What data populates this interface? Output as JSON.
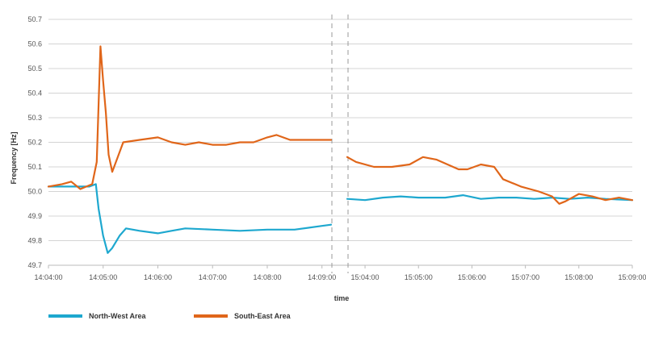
{
  "chart_data": {
    "type": "line",
    "title": "",
    "xlabel": "time",
    "ylabel": "Frequency [Hz]",
    "ylim": [
      49.7,
      50.7
    ],
    "yticks": [
      "49.7",
      "49.8",
      "49.9",
      "50.0",
      "50.1",
      "50.2",
      "50.3",
      "50.4",
      "50.5",
      "50.6",
      "50.7"
    ],
    "grid": true,
    "legend_position": "bottom-left",
    "panels": [
      {
        "xlim": [
          "14:04:00",
          "14:09:10"
        ],
        "xticks": [
          "14:04:00",
          "14:05:00",
          "14:06:00",
          "14:07:00",
          "14:08:00",
          "14:09:00"
        ],
        "series": [
          {
            "name": "North-West Area",
            "color": "#1ea8cf",
            "points": [
              [
                "14:04:00",
                50.02
              ],
              [
                "14:04:15",
                50.02
              ],
              [
                "14:04:30",
                50.02
              ],
              [
                "14:04:45",
                50.02
              ],
              [
                "14:04:52",
                50.03
              ],
              [
                "14:04:55",
                49.93
              ],
              [
                "14:05:00",
                49.82
              ],
              [
                "14:05:05",
                49.75
              ],
              [
                "14:05:10",
                49.77
              ],
              [
                "14:05:18",
                49.82
              ],
              [
                "14:05:25",
                49.85
              ],
              [
                "14:05:40",
                49.84
              ],
              [
                "14:06:00",
                49.83
              ],
              [
                "14:06:15",
                49.84
              ],
              [
                "14:06:30",
                49.85
              ],
              [
                "14:07:00",
                49.845
              ],
              [
                "14:07:30",
                49.84
              ],
              [
                "14:08:00",
                49.845
              ],
              [
                "14:08:30",
                49.845
              ],
              [
                "14:09:00",
                49.86
              ],
              [
                "14:09:10",
                49.865
              ]
            ]
          },
          {
            "name": "South-East Area",
            "color": "#e0661a",
            "points": [
              [
                "14:04:00",
                50.02
              ],
              [
                "14:04:15",
                50.03
              ],
              [
                "14:04:25",
                50.04
              ],
              [
                "14:04:35",
                50.01
              ],
              [
                "14:04:48",
                50.03
              ],
              [
                "14:04:53",
                50.12
              ],
              [
                "14:04:57",
                50.59
              ],
              [
                "14:05:00",
                50.45
              ],
              [
                "14:05:03",
                50.32
              ],
              [
                "14:05:06",
                50.15
              ],
              [
                "14:05:10",
                50.08
              ],
              [
                "14:05:15",
                50.13
              ],
              [
                "14:05:22",
                50.2
              ],
              [
                "14:05:40",
                50.21
              ],
              [
                "14:06:00",
                50.22
              ],
              [
                "14:06:15",
                50.2
              ],
              [
                "14:06:30",
                50.19
              ],
              [
                "14:06:45",
                50.2
              ],
              [
                "14:07:00",
                50.19
              ],
              [
                "14:07:15",
                50.19
              ],
              [
                "14:07:30",
                50.2
              ],
              [
                "14:07:45",
                50.2
              ],
              [
                "14:08:00",
                50.22
              ],
              [
                "14:08:10",
                50.23
              ],
              [
                "14:08:25",
                50.21
              ],
              [
                "14:08:45",
                50.21
              ],
              [
                "14:09:00",
                50.21
              ],
              [
                "14:09:10",
                50.21
              ]
            ]
          }
        ]
      },
      {
        "xlim": [
          "15:03:40",
          "15:09:00"
        ],
        "xticks": [
          "15:04:00",
          "15:05:00",
          "15:06:00",
          "15:07:00",
          "15:08:00",
          "15:09:00"
        ],
        "series": [
          {
            "name": "North-West Area",
            "color": "#1ea8cf",
            "points": [
              [
                "15:03:40",
                49.97
              ],
              [
                "15:04:00",
                49.965
              ],
              [
                "15:04:20",
                49.975
              ],
              [
                "15:04:40",
                49.98
              ],
              [
                "15:05:00",
                49.975
              ],
              [
                "15:05:30",
                49.975
              ],
              [
                "15:05:50",
                49.985
              ],
              [
                "15:06:10",
                49.97
              ],
              [
                "15:06:30",
                49.975
              ],
              [
                "15:06:50",
                49.975
              ],
              [
                "15:07:10",
                49.97
              ],
              [
                "15:07:30",
                49.975
              ],
              [
                "15:07:50",
                49.97
              ],
              [
                "15:08:10",
                49.975
              ],
              [
                "15:08:30",
                49.97
              ],
              [
                "15:09:00",
                49.965
              ]
            ]
          },
          {
            "name": "South-East Area",
            "color": "#e0661a",
            "points": [
              [
                "15:03:40",
                50.14
              ],
              [
                "15:03:50",
                50.12
              ],
              [
                "15:04:10",
                50.1
              ],
              [
                "15:04:30",
                50.1
              ],
              [
                "15:04:50",
                50.11
              ],
              [
                "15:05:05",
                50.14
              ],
              [
                "15:05:20",
                50.13
              ],
              [
                "15:05:45",
                50.09
              ],
              [
                "15:05:55",
                50.09
              ],
              [
                "15:06:10",
                50.11
              ],
              [
                "15:06:25",
                50.1
              ],
              [
                "15:06:35",
                50.05
              ],
              [
                "15:06:55",
                50.02
              ],
              [
                "15:07:15",
                50.0
              ],
              [
                "15:07:30",
                49.98
              ],
              [
                "15:07:38",
                49.95
              ],
              [
                "15:07:45",
                49.96
              ],
              [
                "15:08:00",
                49.99
              ],
              [
                "15:08:15",
                49.98
              ],
              [
                "15:08:30",
                49.965
              ],
              [
                "15:08:45",
                49.975
              ],
              [
                "15:09:00",
                49.965
              ]
            ]
          }
        ]
      }
    ],
    "legend": [
      {
        "name": "North-West Area",
        "color": "#1ea8cf"
      },
      {
        "name": "South-East Area",
        "color": "#e0661a"
      }
    ]
  }
}
